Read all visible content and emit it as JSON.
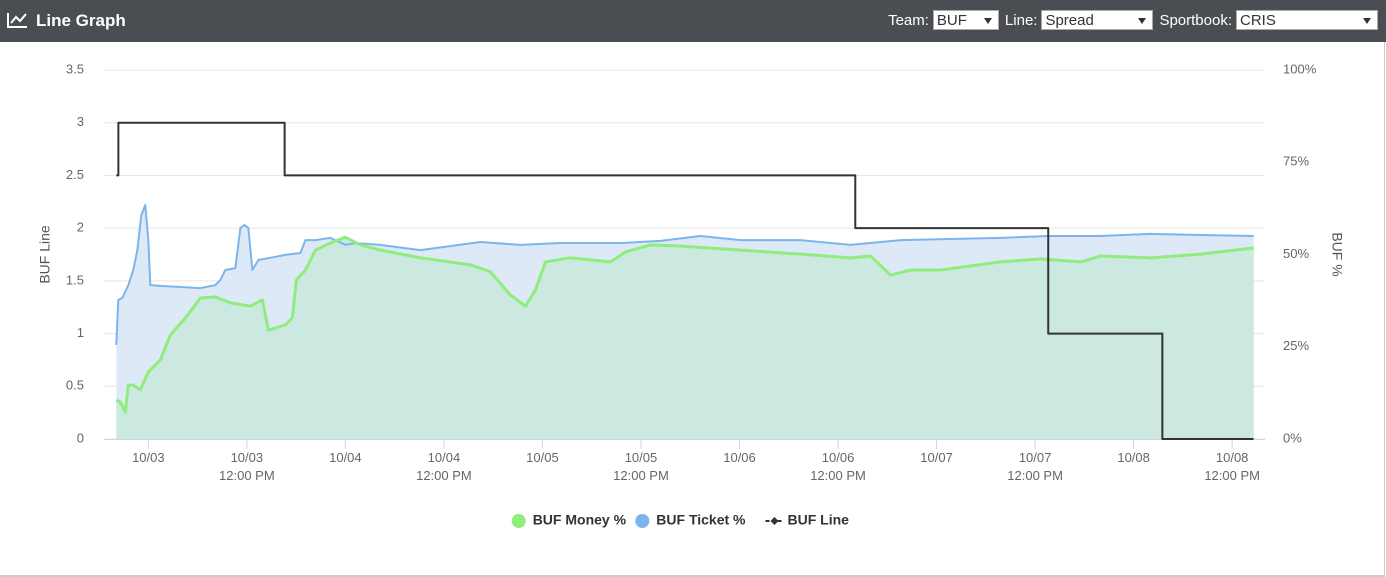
{
  "header": {
    "title": "Line Graph",
    "controls": [
      {
        "label": "Team:",
        "value": "BUF"
      },
      {
        "label": "Line:",
        "value": "Spread"
      },
      {
        "label": "Sportbook:",
        "value": "CRIS"
      }
    ]
  },
  "chart_data": {
    "type": "line",
    "y_label": "BUF Line",
    "y2_label": "BUF %",
    "xlim": [
      -5.4,
      136
    ],
    "xticks": [
      {
        "value": 0,
        "label": [
          "10/03"
        ]
      },
      {
        "value": 12,
        "label": [
          "10/03",
          "12:00 PM"
        ]
      },
      {
        "value": 24,
        "label": [
          "10/04"
        ]
      },
      {
        "value": 36,
        "label": [
          "10/04",
          "12:00 PM"
        ]
      },
      {
        "value": 48,
        "label": [
          "10/05"
        ]
      },
      {
        "value": 60,
        "label": [
          "10/05",
          "12:00 PM"
        ]
      },
      {
        "value": 72,
        "label": [
          "10/06"
        ]
      },
      {
        "value": 84,
        "label": [
          "10/06",
          "12:00 PM"
        ]
      },
      {
        "value": 96,
        "label": [
          "10/07"
        ]
      },
      {
        "value": 108,
        "label": [
          "10/07",
          "12:00 PM"
        ]
      },
      {
        "value": 120,
        "label": [
          "10/08"
        ]
      },
      {
        "value": 132,
        "label": [
          "10/08",
          "12:00 PM"
        ]
      }
    ],
    "ylim": [
      0,
      3.5
    ],
    "yticks": [
      0,
      0.5,
      1,
      1.5,
      2,
      2.5,
      3,
      3.5
    ],
    "y2lim": [
      0,
      100
    ],
    "y2ticks": [
      {
        "value": 0,
        "label": "0%"
      },
      {
        "value": 25,
        "label": "25%"
      },
      {
        "value": 50,
        "label": "50%"
      },
      {
        "value": 75,
        "label": "75%"
      },
      {
        "value": 100,
        "label": "100%"
      }
    ],
    "grid": true,
    "legend": "bottom",
    "series": [
      {
        "name": "BUF Money %",
        "color": "#90ed7d",
        "area_color": "#cbe9e0",
        "axis": "y2",
        "x": [
          -3.9,
          -3.41,
          -2.8,
          -2.44,
          -1.83,
          -0.97,
          0,
          1.46,
          2.68,
          4.51,
          6.34,
          8.16,
          9.99,
          12.43,
          13.89,
          14.62,
          16.69,
          17.54,
          18.03,
          19.13,
          20.35,
          22.17,
          24.0,
          25.83,
          28.27,
          33.14,
          39.23,
          41.67,
          44.1,
          45.93,
          47.15,
          48.37,
          51.41,
          56.29,
          58.11,
          61.16,
          64.81,
          72.12,
          79.43,
          85.53,
          87.96,
          90.4,
          92.84,
          96.49,
          103.8,
          108.67,
          113.55,
          115.99,
          122.08,
          128.17,
          134.63
        ],
        "values": [
          10.6,
          10.0,
          7.3,
          14.6,
          14.6,
          13.3,
          18.2,
          21.4,
          28.2,
          32.8,
          38.2,
          38.5,
          36.9,
          36.0,
          37.7,
          29.5,
          30.9,
          32.8,
          43.1,
          45.8,
          51.2,
          53.1,
          54.7,
          52.6,
          51.2,
          49.1,
          47.2,
          45.3,
          39.0,
          36.0,
          40.4,
          48.0,
          49.1,
          48.0,
          50.7,
          52.6,
          52.3,
          51.2,
          50.1,
          49.1,
          49.6,
          44.4,
          45.8,
          45.8,
          48.0,
          48.8,
          48.0,
          49.6,
          49.1,
          50.1,
          51.8
        ]
      },
      {
        "name": "BUF Ticket %",
        "color": "#7cb5ec",
        "area_color": "#dde9f7",
        "axis": "y2",
        "x": [
          -3.9,
          -3.66,
          -3.17,
          -2.44,
          -1.83,
          -1.34,
          -0.85,
          -0.37,
          0,
          0.24,
          1.46,
          6.34,
          8.16,
          8.77,
          9.38,
          10.6,
          11.21,
          11.7,
          12.18,
          12.67,
          13.4,
          14.86,
          16.69,
          18.52,
          19.13,
          20.35,
          22.17,
          24.0,
          25.22,
          28.27,
          33.14,
          40.45,
          45.32,
          50.19,
          57.5,
          62.38,
          67.25,
          72.12,
          79.43,
          85.53,
          91.62,
          103.8,
          109.6,
          115.99,
          122.08,
          128.17,
          134.63
        ],
        "values": [
          25.5,
          37.7,
          38.2,
          41.7,
          45.8,
          51.2,
          60.7,
          63.4,
          53.9,
          41.7,
          41.5,
          40.9,
          41.7,
          43.1,
          45.8,
          46.3,
          57.2,
          58.0,
          57.2,
          45.8,
          48.5,
          49.1,
          49.9,
          50.4,
          53.9,
          53.9,
          54.5,
          52.6,
          53.1,
          52.6,
          51.2,
          53.4,
          52.6,
          53.1,
          53.1,
          53.7,
          55.0,
          53.9,
          53.9,
          52.6,
          53.9,
          54.5,
          55.0,
          55.0,
          55.6,
          55.3,
          55.0
        ]
      },
      {
        "name": "BUF Line",
        "color": "#333333",
        "step": true,
        "x": [
          -3.9,
          -3.65,
          16.6,
          86.1,
          109.6,
          123.5,
          134.6
        ],
        "values": [
          2.5,
          3,
          2.5,
          2,
          1,
          0,
          0
        ]
      }
    ]
  }
}
